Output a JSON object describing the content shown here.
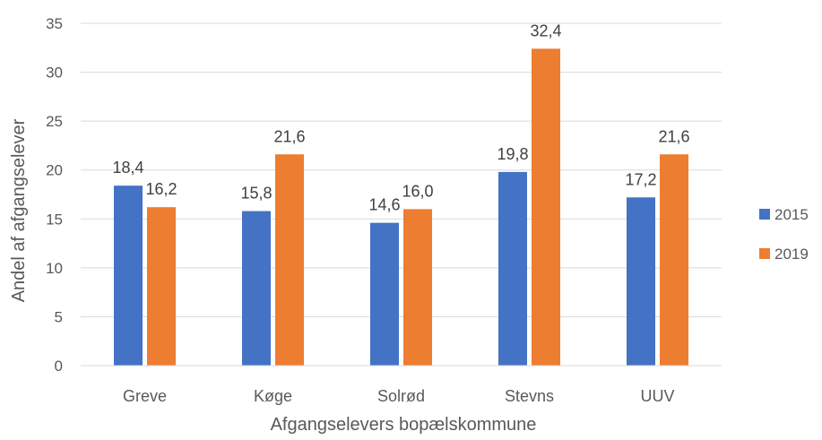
{
  "chart_data": {
    "type": "bar",
    "title": "",
    "xlabel": "Afgangselevers bopælskommune",
    "ylabel": "Andel af afgangselever",
    "categories": [
      "Greve",
      "Køge",
      "Solrød",
      "Stevns",
      "UUV"
    ],
    "series": [
      {
        "name": "2015",
        "color": "#4472C4",
        "values": [
          18.4,
          15.8,
          14.6,
          19.8,
          17.2
        ],
        "labels": [
          "18,4",
          "15,8",
          "14,6",
          "19,8",
          "17,2"
        ]
      },
      {
        "name": "2019",
        "color": "#ED7D31",
        "values": [
          16.2,
          21.6,
          16.0,
          32.4,
          21.6
        ],
        "labels": [
          "16,2",
          "21,6",
          "16,0",
          "32,4",
          "21,6"
        ]
      }
    ],
    "ylim": [
      0,
      35
    ],
    "yticks": [
      0,
      5,
      10,
      15,
      20,
      25,
      30,
      35
    ],
    "grid": true,
    "legend_position": "right"
  }
}
